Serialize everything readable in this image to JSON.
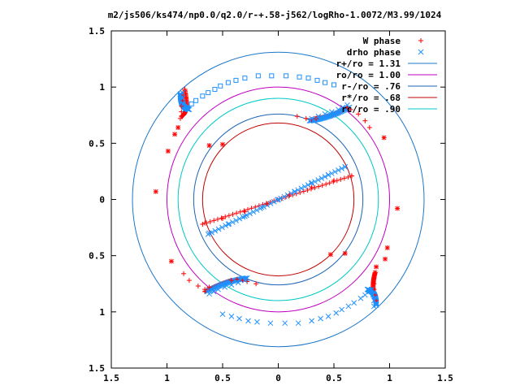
{
  "chart_data": {
    "type": "scatter",
    "title": "m2/js506/ks474/np0.0/q2.0/r-+.58-j562/logRho-1.0072/M3.99/1024",
    "xlim": [
      -1.5,
      1.5
    ],
    "ylim": [
      -1.5,
      1.5
    ],
    "x_tick_labels": [
      "1.5",
      "1",
      "0.5",
      "0",
      "0.5",
      "1",
      "1.5"
    ],
    "x_tick_values": [
      -1.5,
      -1,
      -0.5,
      0,
      0.5,
      1,
      1.5
    ],
    "y_tick_labels": [
      "1.5",
      "1",
      "0.5",
      "0",
      "0.5",
      "1",
      "1.5"
    ],
    "y_tick_values": [
      1.5,
      1,
      0.5,
      0,
      -0.5,
      -1,
      -1.5
    ],
    "grid": false,
    "legend_position": "top-right",
    "legend": [
      {
        "label": "W phase",
        "color": "#ff0000",
        "marker": "plus"
      },
      {
        "label": "drho phase",
        "color": "#1e90ff",
        "marker": "cross"
      },
      {
        "label": "r+/ro = 1.31",
        "color": "#1e78c8",
        "marker": "line"
      },
      {
        "label": "ro/ro = 1.00",
        "color": "#c000c0",
        "marker": "line"
      },
      {
        "label": "r-/ro = .76",
        "color": "#1e64b4",
        "marker": "line"
      },
      {
        "label": "r*/ro = .68",
        "color": "#c00000",
        "marker": "line"
      },
      {
        "label": "rc/ro = .90",
        "color": "#00c8c8",
        "marker": "line"
      }
    ],
    "circles": [
      {
        "name": "r+/ro = 1.31",
        "radius": 1.31,
        "color": "#1e78c8"
      },
      {
        "name": "ro/ro = 1.00",
        "radius": 1.0,
        "color": "#c000c0"
      },
      {
        "name": "r-/ro = .76",
        "radius": 0.76,
        "color": "#1e64b4"
      },
      {
        "name": "r*/ro = .68",
        "radius": 0.68,
        "color": "#c00000"
      },
      {
        "name": "rc/ro = .90",
        "radius": 0.9,
        "color": "#00c8c8"
      }
    ],
    "series": [
      {
        "name": "W phase",
        "color": "#ff0000",
        "points": [
          [
            -0.84,
            0.98
          ],
          [
            -0.85,
            0.93
          ],
          [
            -0.86,
            0.88
          ],
          [
            -0.87,
            0.83
          ],
          [
            -0.87,
            0.78
          ],
          [
            -0.88,
            0.72
          ],
          [
            -0.9,
            0.64
          ],
          [
            -0.93,
            0.58
          ],
          [
            -0.99,
            0.43
          ],
          [
            -1.1,
            0.07
          ],
          [
            -0.62,
            0.48
          ],
          [
            -0.5,
            0.49
          ],
          [
            0.17,
            0.74
          ],
          [
            0.25,
            0.72
          ],
          [
            0.3,
            0.71
          ],
          [
            0.34,
            0.72
          ],
          [
            0.62,
            0.82
          ],
          [
            0.65,
            0.8
          ],
          [
            0.72,
            0.76
          ],
          [
            0.78,
            0.7
          ],
          [
            0.82,
            0.64
          ],
          [
            0.95,
            0.55
          ],
          [
            1.07,
            -0.08
          ],
          [
            0.98,
            -0.43
          ],
          [
            0.96,
            -0.53
          ],
          [
            0.88,
            -0.6
          ],
          [
            0.87,
            -0.65
          ],
          [
            0.86,
            -0.7
          ],
          [
            0.86,
            -0.75
          ],
          [
            0.86,
            -0.8
          ],
          [
            0.87,
            -0.85
          ],
          [
            0.88,
            -0.9
          ],
          [
            0.6,
            -0.48
          ],
          [
            0.47,
            -0.49
          ],
          [
            -0.2,
            -0.75
          ],
          [
            -0.28,
            -0.73
          ],
          [
            -0.32,
            -0.72
          ],
          [
            -0.37,
            -0.71
          ],
          [
            -0.42,
            -0.72
          ],
          [
            -0.62,
            -0.78
          ],
          [
            -0.66,
            -0.8
          ],
          [
            -0.72,
            -0.77
          ],
          [
            -0.8,
            -0.72
          ],
          [
            -0.85,
            -0.66
          ],
          [
            -0.96,
            -0.55
          ],
          [
            -0.66,
            -0.21
          ],
          [
            -0.5,
            -0.17
          ],
          [
            -0.3,
            -0.11
          ],
          [
            -0.1,
            -0.04
          ],
          [
            0.1,
            0.04
          ],
          [
            0.3,
            0.11
          ],
          [
            0.5,
            0.17
          ],
          [
            0.66,
            0.21
          ]
        ]
      },
      {
        "name": "drho phase",
        "color": "#1e90ff",
        "points": [
          [
            -0.18,
            1.1
          ],
          [
            -0.06,
            1.1
          ],
          [
            0.07,
            1.1
          ],
          [
            0.19,
            1.09
          ],
          [
            0.27,
            1.08
          ],
          [
            0.35,
            1.06
          ],
          [
            0.42,
            1.04
          ],
          [
            0.5,
            1.02
          ],
          [
            -0.3,
            1.08
          ],
          [
            -0.38,
            1.06
          ],
          [
            -0.45,
            1.04
          ],
          [
            -0.52,
            1.01
          ],
          [
            -0.57,
            0.98
          ],
          [
            -0.63,
            0.95
          ],
          [
            -0.68,
            0.92
          ],
          [
            -0.74,
            0.88
          ],
          [
            -0.78,
            0.85
          ],
          [
            -0.82,
            0.82
          ],
          [
            -0.84,
            0.8
          ],
          [
            -0.85,
            0.85
          ],
          [
            -0.86,
            0.9
          ],
          [
            -0.86,
            0.95
          ],
          [
            0.3,
            0.72
          ],
          [
            0.36,
            0.74
          ],
          [
            0.42,
            0.76
          ],
          [
            0.48,
            0.78
          ],
          [
            0.54,
            0.8
          ],
          [
            0.58,
            0.82
          ],
          [
            0.62,
            0.84
          ],
          [
            0.18,
            -1.1
          ],
          [
            0.06,
            -1.1
          ],
          [
            -0.07,
            -1.1
          ],
          [
            -0.19,
            -1.09
          ],
          [
            -0.27,
            -1.08
          ],
          [
            -0.35,
            -1.06
          ],
          [
            -0.42,
            -1.04
          ],
          [
            -0.5,
            -1.02
          ],
          [
            0.3,
            -1.08
          ],
          [
            0.38,
            -1.06
          ],
          [
            0.45,
            -1.04
          ],
          [
            0.52,
            -1.01
          ],
          [
            0.57,
            -0.98
          ],
          [
            0.63,
            -0.95
          ],
          [
            0.68,
            -0.92
          ],
          [
            0.74,
            -0.88
          ],
          [
            0.78,
            -0.85
          ],
          [
            0.82,
            -0.82
          ],
          [
            0.84,
            -0.8
          ],
          [
            0.85,
            -0.85
          ],
          [
            0.86,
            -0.9
          ],
          [
            0.86,
            -0.95
          ],
          [
            -0.3,
            -0.72
          ],
          [
            -0.36,
            -0.74
          ],
          [
            -0.42,
            -0.76
          ],
          [
            -0.48,
            -0.78
          ],
          [
            -0.54,
            -0.8
          ],
          [
            -0.58,
            -0.82
          ],
          [
            -0.62,
            -0.84
          ],
          [
            -0.62,
            -0.3
          ],
          [
            -0.45,
            -0.22
          ],
          [
            -0.3,
            -0.15
          ],
          [
            -0.15,
            -0.07
          ],
          [
            0.0,
            0.0
          ],
          [
            0.15,
            0.07
          ],
          [
            0.3,
            0.15
          ],
          [
            0.45,
            0.22
          ],
          [
            0.6,
            0.29
          ]
        ]
      }
    ],
    "clusters": [
      {
        "series": "W phase",
        "from": [
          -0.84,
          0.98
        ],
        "to": [
          -0.87,
          0.74
        ],
        "bend": [
          -0.8,
          0.77
        ]
      },
      {
        "series": "W phase",
        "from": [
          0.87,
          -0.65
        ],
        "to": [
          0.88,
          -0.92
        ],
        "bend": [
          0.83,
          -0.8
        ]
      },
      {
        "series": "W phase",
        "from": [
          -0.42,
          -0.72
        ],
        "to": [
          -0.66,
          -0.82
        ],
        "bend": [
          -0.55,
          -0.76
        ]
      },
      {
        "series": "W phase",
        "from": [
          0.33,
          0.72
        ],
        "to": [
          0.62,
          0.82
        ],
        "bend": [
          0.5,
          0.74
        ]
      },
      {
        "series": "W phase",
        "from": [
          -0.68,
          -0.22
        ],
        "to": [
          0.66,
          0.21
        ],
        "bend": [
          0.0,
          0.0
        ]
      },
      {
        "series": "drho phase",
        "from": [
          -0.88,
          0.94
        ],
        "to": [
          -0.8,
          0.8
        ],
        "bend": [
          -0.88,
          0.82
        ]
      },
      {
        "series": "drho phase",
        "from": [
          0.88,
          -0.94
        ],
        "to": [
          0.8,
          -0.8
        ],
        "bend": [
          0.88,
          -0.82
        ]
      },
      {
        "series": "drho phase",
        "from": [
          0.28,
          0.7
        ],
        "to": [
          0.64,
          0.82
        ],
        "bend": [
          0.45,
          0.72
        ]
      },
      {
        "series": "drho phase",
        "from": [
          -0.28,
          -0.7
        ],
        "to": [
          -0.64,
          -0.82
        ],
        "bend": [
          -0.45,
          -0.72
        ]
      },
      {
        "series": "drho phase",
        "from": [
          -0.63,
          -0.31
        ],
        "to": [
          0.6,
          0.29
        ],
        "bend": [
          0.0,
          0.0
        ]
      }
    ],
    "hollow_squares": [
      [
        -0.3,
        1.08
      ],
      [
        -0.38,
        1.06
      ],
      [
        -0.45,
        1.04
      ],
      [
        -0.52,
        1.01
      ],
      [
        -0.57,
        0.98
      ],
      [
        -0.63,
        0.95
      ],
      [
        -0.68,
        0.92
      ],
      [
        -0.18,
        1.1
      ],
      [
        -0.06,
        1.1
      ],
      [
        0.07,
        1.1
      ],
      [
        0.19,
        1.09
      ],
      [
        0.27,
        1.08
      ],
      [
        0.35,
        1.06
      ],
      [
        0.42,
        1.04
      ],
      [
        0.5,
        1.02
      ],
      [
        -0.74,
        0.88
      ],
      [
        -0.78,
        0.85
      ]
    ]
  }
}
